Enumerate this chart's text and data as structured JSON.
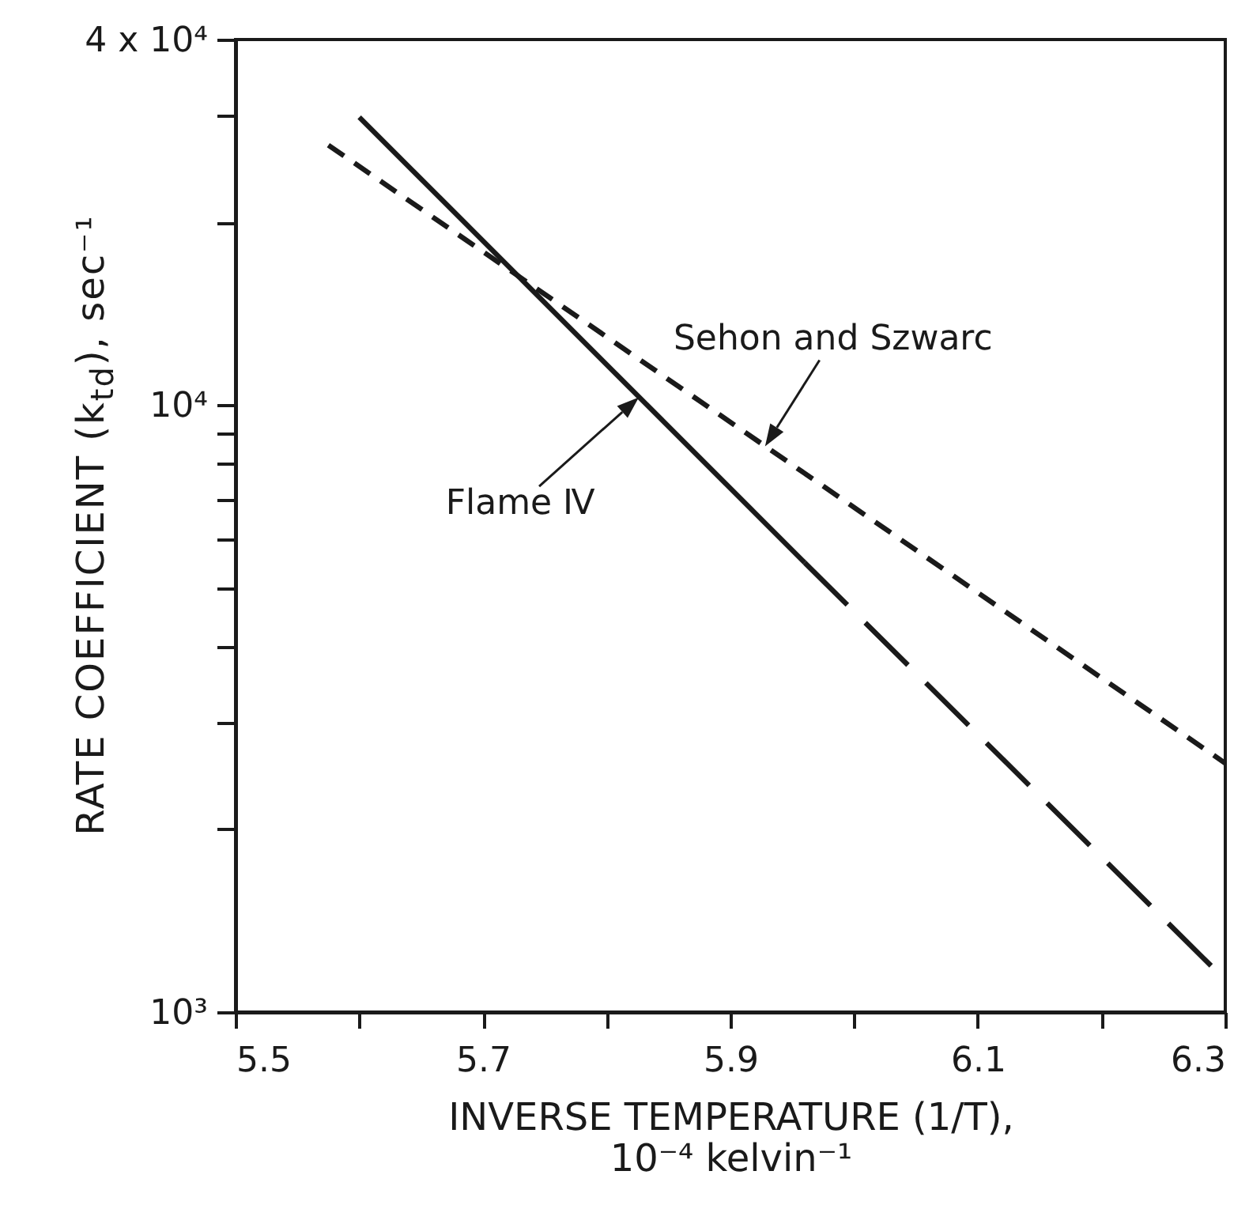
{
  "chart_data": {
    "type": "line",
    "xlabel": "INVERSE TEMPERATURE (1/T),\n10⁻⁴ kelvin⁻¹",
    "ylabel": "RATE COEFFICIENT (k$_{td}$), sec⁻¹",
    "xlim": [
      5.5,
      6.3
    ],
    "xticks": [
      5.5,
      {
        "value": 5.6,
        "label": null
      },
      5.7,
      {
        "value": 5.8,
        "label": null
      },
      5.9,
      {
        "value": 6.0,
        "label": null
      },
      6.1,
      {
        "value": 6.2,
        "label": null
      },
      6.3
    ],
    "ylim": [
      1000,
      40000
    ],
    "yticks": [
      {
        "value": 1000,
        "label": "10³"
      },
      {
        "value": 2000,
        "label": null
      },
      {
        "value": 3000,
        "label": null
      },
      {
        "value": 4000,
        "label": null
      },
      {
        "value": 5000,
        "label": null
      },
      {
        "value": 6000,
        "label": null
      },
      {
        "value": 7000,
        "label": null
      },
      {
        "value": 8000,
        "label": null
      },
      {
        "value": 9000,
        "label": null
      },
      {
        "value": 10000,
        "label": "10⁴"
      },
      {
        "value": 20000,
        "label": null
      },
      {
        "value": 30000,
        "label": null
      },
      {
        "value": 40000,
        "label": "4 x 10⁴"
      }
    ],
    "log": true,
    "grid": false,
    "series": [
      {
        "color": "#1a1a1a",
        "line_style": "solid",
        "x": [
          5.6,
          5.96
        ],
        "values": [
          29800,
          5500
        ]
      },
      {
        "color": "#1a1a1a",
        "line_style": "long-dashed",
        "x": [
          5.96,
          6.3
        ],
        "values": [
          5500,
          1130
        ]
      },
      {
        "color": "#1a1a1a",
        "line_style": "dashed",
        "x": [
          5.575,
          6.3
        ],
        "values": [
          26800,
          2570
        ]
      }
    ],
    "annotations": [
      {
        "text": "Sehon and Szwarc",
        "x": 5.928,
        "y": 8550
      },
      {
        "text": "Flame Ⅳ",
        "x": 5.826,
        "y": 10300
      }
    ]
  }
}
